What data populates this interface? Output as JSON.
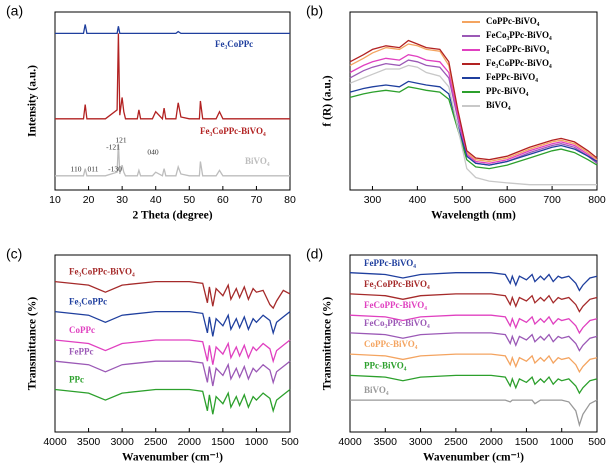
{
  "chart_data": [
    {
      "type": "line",
      "label": "(a)",
      "xlabel": "2 Theta (degree)",
      "ylabel": "Intensity (a.u.)",
      "xlim": [
        10,
        80
      ],
      "xticks": [
        10,
        20,
        30,
        40,
        50,
        60,
        70,
        80
      ],
      "ylim": [
        0,
        100
      ],
      "x": [
        10,
        15,
        18.5,
        19,
        19.5,
        25,
        28.5,
        28.9,
        29.3,
        30,
        30.5,
        31,
        34.5,
        35,
        35.5,
        39,
        40,
        42,
        42.5,
        43,
        46,
        46.7,
        47.5,
        50,
        53,
        53.3,
        54,
        58,
        59,
        60,
        70,
        80
      ],
      "series": [
        {
          "name": "Fe₃CoPPc",
          "color": "#1f3f9e",
          "values": [
            88,
            88,
            88,
            93,
            88,
            88,
            88,
            92,
            88,
            88,
            88,
            88,
            88,
            88,
            88,
            88,
            88,
            88,
            88,
            88,
            88,
            89,
            88,
            88,
            88,
            88,
            88,
            88,
            88,
            88,
            88,
            88
          ]
        },
        {
          "name": "Fe₃CoPPc-BiVO₄",
          "color": "#b22222",
          "values": [
            40,
            40,
            40,
            48,
            40,
            40,
            45,
            88,
            42,
            52,
            44,
            40,
            40,
            45,
            40,
            40,
            44,
            40,
            46,
            40,
            40,
            49,
            41,
            40,
            40,
            50,
            40,
            40,
            44,
            40,
            40,
            40
          ]
        },
        {
          "name": "BiVO₄",
          "color": "#bdbdbd",
          "values": [
            8,
            8,
            8,
            12,
            8,
            8,
            10,
            26,
            9,
            14,
            10,
            8,
            8,
            11,
            8,
            8,
            10,
            8,
            12,
            8,
            8,
            13,
            9,
            8,
            8,
            16,
            8,
            8,
            11,
            8,
            8,
            8
          ]
        }
      ],
      "annotations": [
        "110",
        "011",
        "-130",
        "-121",
        "121",
        "040"
      ]
    },
    {
      "type": "line",
      "label": "(b)",
      "xlabel": "Wavelength (nm)",
      "ylabel": "f (R) (a.u.)",
      "xlim": [
        250,
        800
      ],
      "xticks": [
        300,
        400,
        500,
        600,
        700,
        800
      ],
      "ylim": [
        0,
        100
      ],
      "legend": "upper right",
      "x": [
        250,
        280,
        300,
        330,
        360,
        380,
        400,
        420,
        450,
        470,
        490,
        510,
        530,
        560,
        600,
        650,
        700,
        720,
        750,
        780,
        800
      ],
      "series": [
        {
          "name": "CoPPc-BiVO₄",
          "color": "#f4a460",
          "values": [
            70,
            74,
            77,
            80,
            79,
            82,
            81,
            79,
            78,
            70,
            44,
            21,
            17,
            16,
            18,
            23,
            27,
            28,
            26,
            21,
            17
          ]
        },
        {
          "name": "FeCo₃PPc-BiVO₄",
          "color": "#9b59b6",
          "values": [
            63,
            67,
            69,
            71,
            70,
            73,
            72,
            70,
            69,
            63,
            40,
            19,
            15,
            14,
            16,
            21,
            25,
            26,
            24,
            19,
            15
          ]
        },
        {
          "name": "FeCoPPc-BiVO₄",
          "color": "#e040c0",
          "values": [
            66,
            70,
            72,
            74,
            73,
            76,
            75,
            73,
            72,
            66,
            42,
            20,
            16,
            15,
            17,
            22,
            26,
            27,
            25,
            20,
            16
          ]
        },
        {
          "name": "Fe₃CoPPc-BiVO₄",
          "color": "#b22222",
          "values": [
            72,
            76,
            79,
            81,
            80,
            84,
            82,
            80,
            79,
            72,
            45,
            22,
            18,
            17,
            19,
            24,
            28,
            29,
            27,
            22,
            18
          ]
        },
        {
          "name": "FePPc-BiVO₄",
          "color": "#1f3f9e",
          "values": [
            55,
            57,
            58,
            59,
            58,
            61,
            60,
            59,
            58,
            54,
            36,
            19,
            15,
            14,
            16,
            20,
            24,
            25,
            23,
            19,
            16
          ]
        },
        {
          "name": "PPc-BiVO₄",
          "color": "#2ca02c",
          "values": [
            52,
            54,
            55,
            56,
            55,
            58,
            57,
            56,
            55,
            51,
            34,
            17,
            13,
            12,
            14,
            18,
            22,
            23,
            21,
            17,
            14
          ]
        },
        {
          "name": "BiVO₄",
          "color": "#c8c8c8",
          "values": [
            60,
            63,
            65,
            68,
            68,
            70,
            69,
            66,
            64,
            58,
            35,
            12,
            7,
            5,
            4,
            3,
            3,
            3,
            3,
            3,
            3
          ]
        }
      ]
    },
    {
      "type": "line",
      "label": "(c)",
      "xlabel": "Wavenumber (cm⁻¹)",
      "ylabel": "Transmittance (%)",
      "xlim": [
        4000,
        500
      ],
      "xticks": [
        4000,
        3500,
        3000,
        2500,
        2000,
        1500,
        1000,
        500
      ],
      "ylim": [
        0,
        100
      ],
      "x": [
        4000,
        3500,
        3250,
        3000,
        2500,
        2000,
        1800,
        1730,
        1700,
        1650,
        1600,
        1500,
        1420,
        1380,
        1300,
        1250,
        1180,
        1120,
        1050,
        1000,
        900,
        800,
        750,
        700,
        600,
        500
      ],
      "series": [
        {
          "name": "Fe₃CoPPc-BiVO₄",
          "color": "#a52a2a",
          "values": [
            85,
            83,
            79,
            83,
            85,
            85,
            84,
            73,
            82,
            71,
            81,
            77,
            83,
            75,
            81,
            76,
            82,
            75,
            81,
            79,
            80,
            72,
            70,
            74,
            80,
            78
          ]
        },
        {
          "name": "Fe₃CoPPc",
          "color": "#1f3f9e",
          "values": [
            68,
            66,
            62,
            66,
            68,
            68,
            67,
            56,
            65,
            54,
            64,
            60,
            66,
            58,
            64,
            59,
            65,
            58,
            64,
            62,
            66,
            63,
            56,
            62,
            65,
            68
          ]
        },
        {
          "name": "CoPPc",
          "color": "#e040c0",
          "values": [
            52,
            50,
            46,
            50,
            52,
            52,
            51,
            40,
            49,
            38,
            48,
            44,
            50,
            42,
            48,
            43,
            49,
            42,
            48,
            46,
            50,
            47,
            40,
            46,
            49,
            52
          ]
        },
        {
          "name": "FePPc",
          "color": "#9b59b6",
          "values": [
            40,
            38,
            34,
            38,
            40,
            40,
            39,
            28,
            37,
            26,
            36,
            32,
            38,
            30,
            36,
            31,
            37,
            30,
            36,
            34,
            38,
            35,
            28,
            34,
            37,
            40
          ]
        },
        {
          "name": "PPc",
          "color": "#2ca02c",
          "values": [
            24,
            22,
            18,
            22,
            24,
            24,
            23,
            12,
            21,
            10,
            20,
            16,
            22,
            14,
            20,
            15,
            21,
            14,
            20,
            18,
            22,
            19,
            12,
            18,
            21,
            24
          ]
        }
      ]
    },
    {
      "type": "line",
      "label": "(d)",
      "xlabel": "Wavenumber (cm⁻¹)",
      "ylabel": "Transmittance (%)",
      "xlim": [
        4000,
        500
      ],
      "xticks": [
        4000,
        3500,
        3000,
        2500,
        2000,
        1500,
        1000,
        500
      ],
      "ylim": [
        0,
        100
      ],
      "x": [
        4000,
        3500,
        3250,
        3000,
        2500,
        2000,
        1800,
        1730,
        1700,
        1650,
        1600,
        1500,
        1420,
        1380,
        1300,
        1250,
        1180,
        1120,
        1050,
        1000,
        900,
        800,
        750,
        700,
        600,
        500
      ],
      "series": [
        {
          "name": "FePPc-BiVO₄",
          "color": "#1f3f9e",
          "values": [
            90,
            89,
            87,
            89,
            90,
            90,
            89,
            84,
            88,
            83,
            88,
            86,
            89,
            85,
            88,
            86,
            89,
            85,
            88,
            87,
            88,
            84,
            80,
            83,
            87,
            88
          ]
        },
        {
          "name": "Fe₃CoPPc-BiVO₄",
          "color": "#a52a2a",
          "values": [
            78,
            77,
            75,
            77,
            78,
            78,
            77,
            72,
            76,
            71,
            76,
            74,
            77,
            73,
            76,
            74,
            77,
            73,
            76,
            75,
            76,
            72,
            68,
            71,
            75,
            76
          ]
        },
        {
          "name": "FeCoPPc-BiVO₄",
          "color": "#e040c0",
          "values": [
            66,
            65,
            63,
            65,
            66,
            66,
            65,
            60,
            64,
            59,
            64,
            62,
            65,
            61,
            64,
            62,
            65,
            61,
            64,
            63,
            64,
            60,
            56,
            59,
            63,
            64
          ]
        },
        {
          "name": "FeCo₃PPc-BiVO₄",
          "color": "#9b59b6",
          "values": [
            56,
            55,
            53,
            55,
            56,
            56,
            55,
            50,
            54,
            49,
            54,
            52,
            55,
            51,
            54,
            52,
            55,
            51,
            54,
            53,
            54,
            50,
            46,
            49,
            53,
            54
          ]
        },
        {
          "name": "CoPPc-BiVO₄",
          "color": "#f4a460",
          "values": [
            44,
            43,
            41,
            43,
            44,
            44,
            43,
            38,
            42,
            37,
            42,
            40,
            43,
            39,
            42,
            40,
            43,
            39,
            42,
            41,
            42,
            38,
            34,
            37,
            41,
            42
          ]
        },
        {
          "name": "PPc-BiVO₄",
          "color": "#2ca02c",
          "values": [
            32,
            31,
            29,
            31,
            32,
            32,
            31,
            26,
            30,
            25,
            30,
            28,
            31,
            27,
            30,
            28,
            31,
            27,
            30,
            29,
            30,
            26,
            22,
            25,
            29,
            30
          ]
        },
        {
          "name": "BiVO₄",
          "color": "#999999",
          "values": [
            18,
            18,
            18,
            18,
            18,
            18,
            18,
            17,
            18,
            18,
            18,
            18,
            18,
            16,
            18,
            18,
            18,
            18,
            18,
            18,
            17,
            12,
            4,
            10,
            16,
            18
          ]
        }
      ]
    }
  ]
}
